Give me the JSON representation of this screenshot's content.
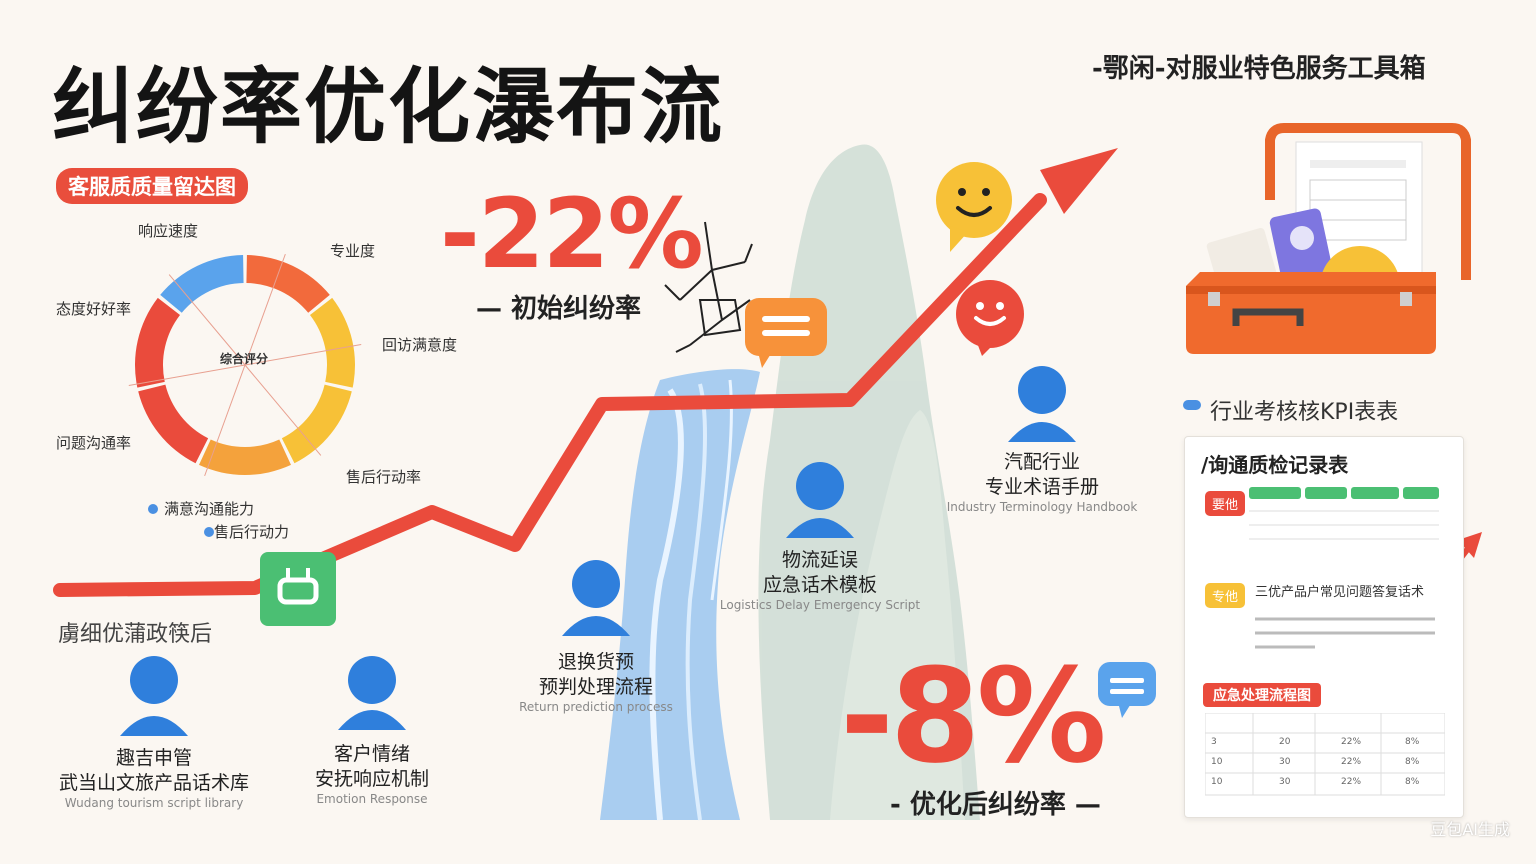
{
  "header": {
    "title": "纠纷率优化瀑布流",
    "toolbox_title": "-鄂闲-对服业特色服务工具箱"
  },
  "radar": {
    "badge": "客服质质量留达图",
    "center_text": "综合评分",
    "labels": [
      "响应速度",
      "专业度",
      "回访满意度",
      "售后行动率",
      "问题沟通率",
      "态度好好率"
    ],
    "legend": [
      "满意沟通能力",
      "售后行动力"
    ],
    "segment_colors": [
      "#f26a3c",
      "#f7c137",
      "#f7c137",
      "#f4a23c",
      "#ea4b3c",
      "#ea4b3c",
      "#5aa3ec"
    ]
  },
  "metrics": {
    "initial_value": "-22%",
    "initial_label": "— 初始纠纷率",
    "final_value": "-8%",
    "final_label": "- 优化后纠纷率 —"
  },
  "after_label": "虜细优蒲政筷后",
  "nodes": [
    {
      "title1": "趣吉申管",
      "title2": "武当山文旅产品话术库",
      "sub": "Wudang tourism script library"
    },
    {
      "title1": "客户情绪",
      "title2": "安抚响应机制",
      "sub": "Emotion Response"
    },
    {
      "title1": "退换货预",
      "title2": "预判处理流程",
      "sub": "Return prediction process"
    },
    {
      "title1": "物流延误",
      "title2": "应急话术模板",
      "sub": "Logistics Delay Emergency Script"
    },
    {
      "title1": "汽配行业",
      "title2": "专业术语手册",
      "sub": "Industry Terminology Handbook"
    }
  ],
  "kpi": {
    "title": "行业考核核KPI表表",
    "record_title": "/询通质检记录表",
    "tag1": "要他",
    "tag2": "专他",
    "row2_title": "三优产品户常见问题答复话术",
    "flow_badge": "应急处理流程图",
    "table_rows": [
      [
        "3",
        "20",
        "22%",
        "8%"
      ],
      [
        "10",
        "30",
        "22%",
        "8%"
      ],
      [
        "10",
        "30",
        "22%",
        "8%"
      ]
    ]
  },
  "colors": {
    "accent_red": "#ea4b3c",
    "orange": "#f26a3c",
    "yellow": "#f7c137",
    "blue": "#2f7fdc",
    "green": "#4bbf73"
  },
  "watermark": "豆包AI生成"
}
